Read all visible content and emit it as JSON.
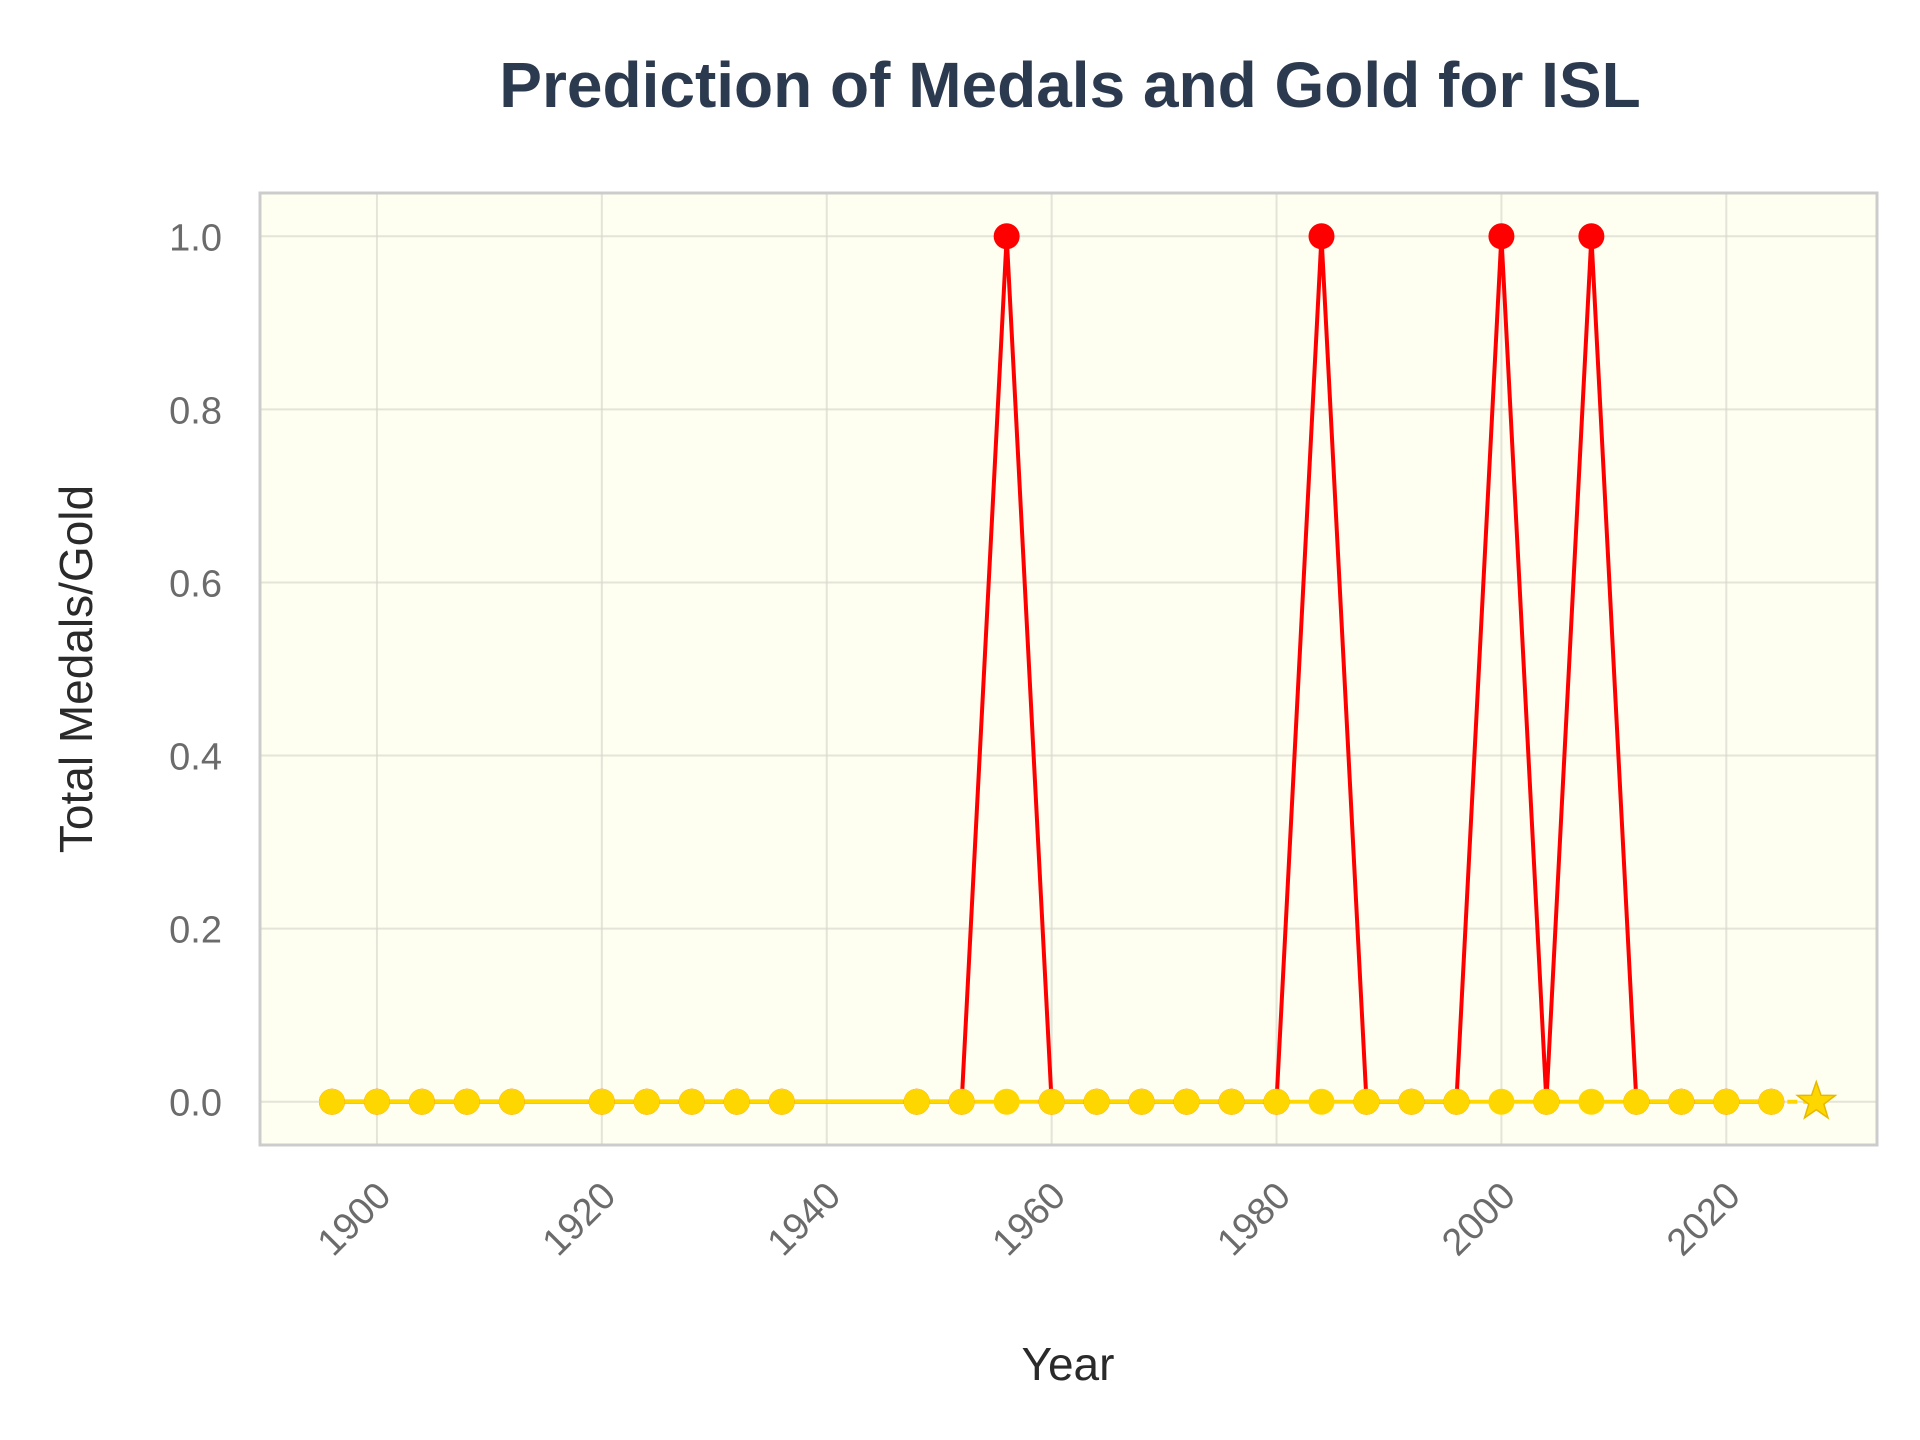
{
  "chart_data": {
    "type": "line",
    "title": "Prediction of Medals and Gold for ISL",
    "xlabel": "Year",
    "ylabel": "Total Medals/Gold",
    "xlim": [
      1889.6,
      2033.4
    ],
    "ylim": [
      -0.05,
      1.05
    ],
    "x_ticks": [
      1900,
      1920,
      1940,
      1960,
      1980,
      2000,
      2020
    ],
    "y_ticks": [
      0.0,
      0.2,
      0.4,
      0.6,
      0.8,
      1.0
    ],
    "x_tick_labels": [
      "1900",
      "1920",
      "1940",
      "1960",
      "1980",
      "2000",
      "2020"
    ],
    "y_tick_labels": [
      "0.0",
      "0.2",
      "0.4",
      "0.6",
      "0.8",
      "1.0"
    ],
    "grid": true,
    "legend": "none",
    "colors": {
      "plot_background": "#fefff0",
      "frame": "#cccccc",
      "grid": "#d9d9cf",
      "total_medals": "#ff0000",
      "gold": "#ffd700"
    },
    "series": [
      {
        "id": "total_medals",
        "marker": "circle",
        "x": [
          1896,
          1900,
          1904,
          1908,
          1912,
          1920,
          1924,
          1928,
          1932,
          1936,
          1948,
          1952,
          1956,
          1960,
          1964,
          1968,
          1972,
          1976,
          1980,
          1984,
          1988,
          1992,
          1996,
          2000,
          2004,
          2008,
          2012,
          2016,
          2020,
          2024
        ],
        "values": [
          0,
          0,
          0,
          0,
          0,
          0,
          0,
          0,
          0,
          0,
          0,
          0,
          1,
          0,
          0,
          0,
          0,
          0,
          0,
          1,
          0,
          0,
          0,
          1,
          0,
          1,
          0,
          0,
          0,
          0
        ]
      },
      {
        "id": "gold",
        "marker": "circle",
        "x": [
          1896,
          1900,
          1904,
          1908,
          1912,
          1920,
          1924,
          1928,
          1932,
          1936,
          1948,
          1952,
          1956,
          1960,
          1964,
          1968,
          1972,
          1976,
          1980,
          1984,
          1988,
          1992,
          1996,
          2000,
          2004,
          2008,
          2012,
          2016,
          2020,
          2024
        ],
        "values": [
          0,
          0,
          0,
          0,
          0,
          0,
          0,
          0,
          0,
          0,
          0,
          0,
          0,
          0,
          0,
          0,
          0,
          0,
          0,
          0,
          0,
          0,
          0,
          0,
          0,
          0,
          0,
          0,
          0,
          0
        ]
      }
    ],
    "prediction": {
      "marker": "star",
      "x": 2028,
      "value": 0
    }
  }
}
